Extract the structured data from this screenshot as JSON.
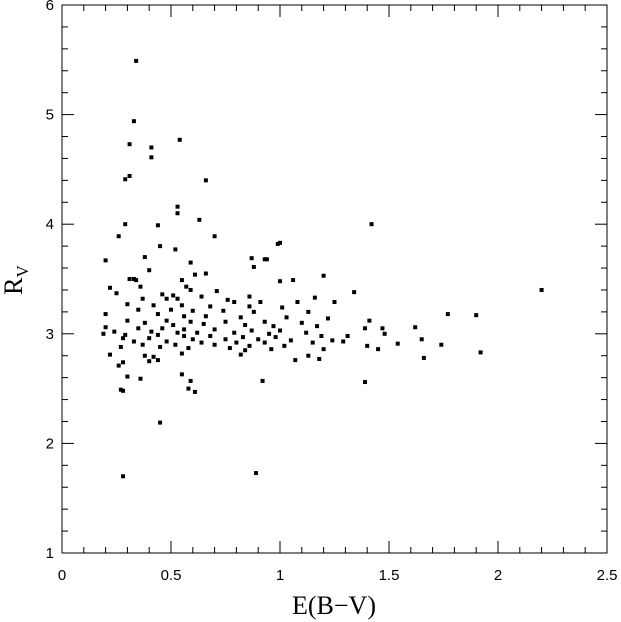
{
  "chart_data": {
    "type": "scatter",
    "title": "",
    "xlabel": "E(B−V)",
    "ylabel_main": "R",
    "ylabel_sub": "V",
    "xlim": [
      0,
      2.5
    ],
    "ylim": [
      1,
      6
    ],
    "x_ticks": [
      0,
      0.5,
      1,
      1.5,
      2,
      2.5
    ],
    "x_tick_labels": [
      "0",
      "0.5",
      "1",
      "1.5",
      "2",
      "2.5"
    ],
    "y_ticks": [
      1,
      2,
      3,
      4,
      5,
      6
    ],
    "y_tick_labels": [
      "1",
      "2",
      "3",
      "4",
      "5",
      "6"
    ],
    "grid": false,
    "marker_color": "#000000",
    "series": [
      {
        "points": [
          [
            0.28,
            1.7
          ],
          [
            0.89,
            1.73
          ],
          [
            0.45,
            2.19
          ],
          [
            0.28,
            2.48
          ],
          [
            0.27,
            2.49
          ],
          [
            0.92,
            2.57
          ],
          [
            1.39,
            2.56
          ],
          [
            0.58,
            2.5
          ],
          [
            0.59,
            2.57
          ],
          [
            0.61,
            2.47
          ],
          [
            0.55,
            2.63
          ],
          [
            0.36,
            2.59
          ],
          [
            0.3,
            2.61
          ],
          [
            0.34,
            5.49
          ],
          [
            0.33,
            4.94
          ],
          [
            0.41,
            4.7
          ],
          [
            0.41,
            4.61
          ],
          [
            0.31,
            4.73
          ],
          [
            0.54,
            4.77
          ],
          [
            0.29,
            4.41
          ],
          [
            0.31,
            4.44
          ],
          [
            0.66,
            4.4
          ],
          [
            0.53,
            4.16
          ],
          [
            0.53,
            4.1
          ],
          [
            0.63,
            4.04
          ],
          [
            0.29,
            4.0
          ],
          [
            0.44,
            3.99
          ],
          [
            1.42,
            4.0
          ],
          [
            0.26,
            3.89
          ],
          [
            0.7,
            3.89
          ],
          [
            1.0,
            3.83
          ],
          [
            0.99,
            3.82
          ],
          [
            0.45,
            3.8
          ],
          [
            0.52,
            3.77
          ],
          [
            0.2,
            3.67
          ],
          [
            0.38,
            3.7
          ],
          [
            0.87,
            3.69
          ],
          [
            0.94,
            3.68
          ],
          [
            0.93,
            3.68
          ],
          [
            0.59,
            3.65
          ],
          [
            0.88,
            3.61
          ],
          [
            0.4,
            3.58
          ],
          [
            0.61,
            3.54
          ],
          [
            0.66,
            3.55
          ],
          [
            1.2,
            3.53
          ],
          [
            0.31,
            3.5
          ],
          [
            0.33,
            3.5
          ],
          [
            0.34,
            3.49
          ],
          [
            0.55,
            3.49
          ],
          [
            1.0,
            3.48
          ],
          [
            1.06,
            3.49
          ],
          [
            0.57,
            3.43
          ],
          [
            0.36,
            3.43
          ],
          [
            0.22,
            3.42
          ],
          [
            2.2,
            3.4
          ],
          [
            1.34,
            3.38
          ],
          [
            0.71,
            3.39
          ],
          [
            0.59,
            3.4
          ],
          [
            0.25,
            3.37
          ],
          [
            0.46,
            3.36
          ],
          [
            0.51,
            3.35
          ],
          [
            0.64,
            3.34
          ],
          [
            0.86,
            3.34
          ],
          [
            1.16,
            3.33
          ],
          [
            0.37,
            3.32
          ],
          [
            0.48,
            3.32
          ],
          [
            0.53,
            3.32
          ],
          [
            0.76,
            3.31
          ],
          [
            0.79,
            3.29
          ],
          [
            0.91,
            3.29
          ],
          [
            1.08,
            3.29
          ],
          [
            1.25,
            3.29
          ],
          [
            0.3,
            3.27
          ],
          [
            0.42,
            3.26
          ],
          [
            0.55,
            3.26
          ],
          [
            0.68,
            3.25
          ],
          [
            0.86,
            3.25
          ],
          [
            1.01,
            3.24
          ],
          [
            0.35,
            3.22
          ],
          [
            0.5,
            3.22
          ],
          [
            0.6,
            3.21
          ],
          [
            0.74,
            3.21
          ],
          [
            0.88,
            3.2
          ],
          [
            1.13,
            3.2
          ],
          [
            1.77,
            3.18
          ],
          [
            1.9,
            3.17
          ],
          [
            0.2,
            3.18
          ],
          [
            0.44,
            3.18
          ],
          [
            0.56,
            3.16
          ],
          [
            0.66,
            3.16
          ],
          [
            0.82,
            3.15
          ],
          [
            1.03,
            3.15
          ],
          [
            1.22,
            3.14
          ],
          [
            0.3,
            3.12
          ],
          [
            0.48,
            3.12
          ],
          [
            0.59,
            3.11
          ],
          [
            0.75,
            3.11
          ],
          [
            0.93,
            3.11
          ],
          [
            1.1,
            3.1
          ],
          [
            1.41,
            3.12
          ],
          [
            0.38,
            3.1
          ],
          [
            0.51,
            3.08
          ],
          [
            0.65,
            3.09
          ],
          [
            0.84,
            3.08
          ],
          [
            0.97,
            3.07
          ],
          [
            1.17,
            3.07
          ],
          [
            1.62,
            3.06
          ],
          [
            0.2,
            3.06
          ],
          [
            0.35,
            3.05
          ],
          [
            0.46,
            3.05
          ],
          [
            0.56,
            3.04
          ],
          [
            0.7,
            3.04
          ],
          [
            0.87,
            3.03
          ],
          [
            1.0,
            3.03
          ],
          [
            1.39,
            3.05
          ],
          [
            1.47,
            3.05
          ],
          [
            0.24,
            3.02
          ],
          [
            0.41,
            3.02
          ],
          [
            0.53,
            3.01
          ],
          [
            0.62,
            3.01
          ],
          [
            0.79,
            3.01
          ],
          [
            0.95,
            3.0
          ],
          [
            1.12,
            3.01
          ],
          [
            1.48,
            3.0
          ],
          [
            0.19,
            3.0
          ],
          [
            0.29,
            2.99
          ],
          [
            0.44,
            2.99
          ],
          [
            0.56,
            2.98
          ],
          [
            0.68,
            2.98
          ],
          [
            0.83,
            2.97
          ],
          [
            0.98,
            2.97
          ],
          [
            1.19,
            2.98
          ],
          [
            1.31,
            2.98
          ],
          [
            0.28,
            2.96
          ],
          [
            0.4,
            2.96
          ],
          [
            0.6,
            2.95
          ],
          [
            0.75,
            2.95
          ],
          [
            0.9,
            2.95
          ],
          [
            1.05,
            2.94
          ],
          [
            1.24,
            2.94
          ],
          [
            1.65,
            2.95
          ],
          [
            0.33,
            2.93
          ],
          [
            0.48,
            2.93
          ],
          [
            0.64,
            2.92
          ],
          [
            0.8,
            2.92
          ],
          [
            0.93,
            2.92
          ],
          [
            1.15,
            2.92
          ],
          [
            1.29,
            2.93
          ],
          [
            1.54,
            2.91
          ],
          [
            0.37,
            2.9
          ],
          [
            0.52,
            2.9
          ],
          [
            0.7,
            2.9
          ],
          [
            0.86,
            2.89
          ],
          [
            1.02,
            2.89
          ],
          [
            1.4,
            2.89
          ],
          [
            1.74,
            2.9
          ],
          [
            0.27,
            2.88
          ],
          [
            0.45,
            2.88
          ],
          [
            0.58,
            2.87
          ],
          [
            0.77,
            2.87
          ],
          [
            0.96,
            2.86
          ],
          [
            1.2,
            2.86
          ],
          [
            1.45,
            2.86
          ],
          [
            0.22,
            2.81
          ],
          [
            0.38,
            2.8
          ],
          [
            0.42,
            2.79
          ],
          [
            0.55,
            2.82
          ],
          [
            0.82,
            2.81
          ],
          [
            1.13,
            2.8
          ],
          [
            1.07,
            2.76
          ],
          [
            1.18,
            2.77
          ],
          [
            1.66,
            2.78
          ],
          [
            1.92,
            2.83
          ],
          [
            0.28,
            2.74
          ],
          [
            0.26,
            2.71
          ],
          [
            0.44,
            2.76
          ],
          [
            0.4,
            2.75
          ],
          [
            0.84,
            2.85
          ]
        ]
      }
    ]
  }
}
